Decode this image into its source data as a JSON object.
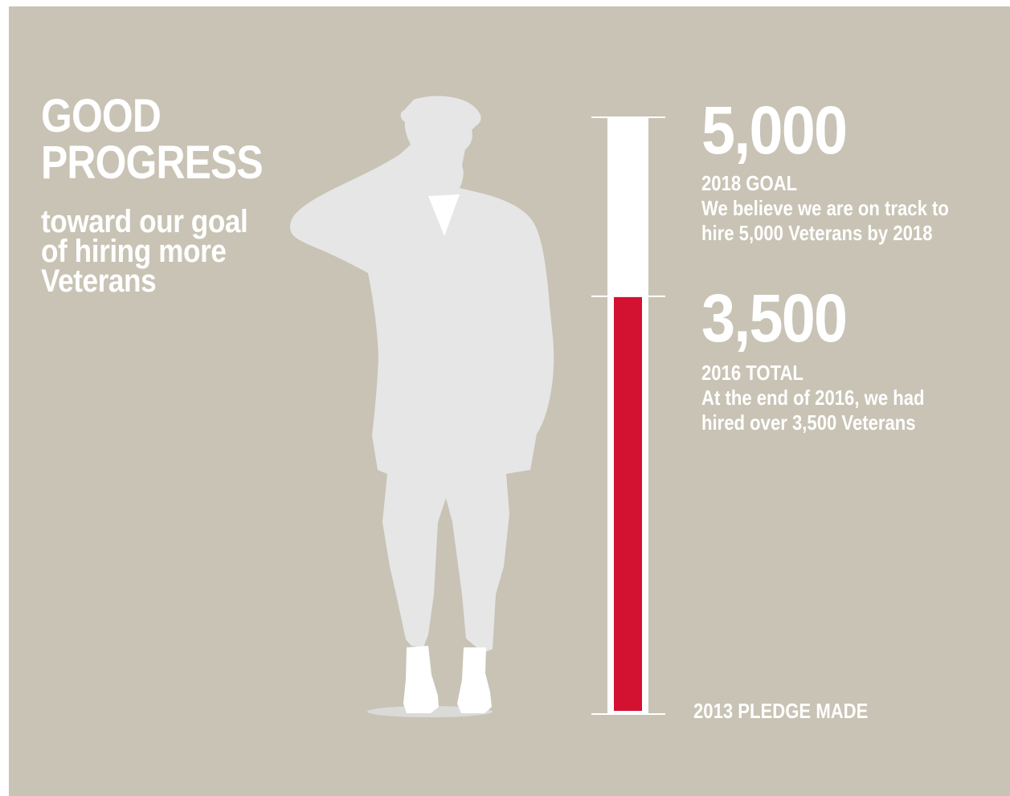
{
  "headline": {
    "title_line1": "GOOD",
    "title_line2": "PROGRESS",
    "subtitle_line1": "toward our goal",
    "subtitle_line2": "of hiring more",
    "subtitle_line3": "Veterans"
  },
  "goal": {
    "value_label": "5,000",
    "heading": "2018 GOAL",
    "text_line1": "We believe we are on track to",
    "text_line2": "hire 5,000 Veterans by 2018"
  },
  "total": {
    "value_label": "3,500",
    "heading": "2016 TOTAL",
    "text_line1": "At the end of 2016, we had",
    "text_line2": "hired over 3,500 Veterans"
  },
  "baseline": {
    "label": "2013 PLEDGE MADE"
  },
  "chart_data": {
    "type": "bar",
    "categories": [
      "2013 PLEDGE MADE",
      "2016 TOTAL",
      "2018 GOAL"
    ],
    "values": [
      0,
      3500,
      5000
    ],
    "ylim": [
      0,
      5000
    ],
    "grid": false
  },
  "colors": {
    "background": "#c9c3b5",
    "fill": "#d31131",
    "tube": "#ffffff",
    "silhouette": "#e6e6e7",
    "text": "#ffffff"
  },
  "icons": {
    "figure": "saluting-soldier-silhouette-icon"
  }
}
